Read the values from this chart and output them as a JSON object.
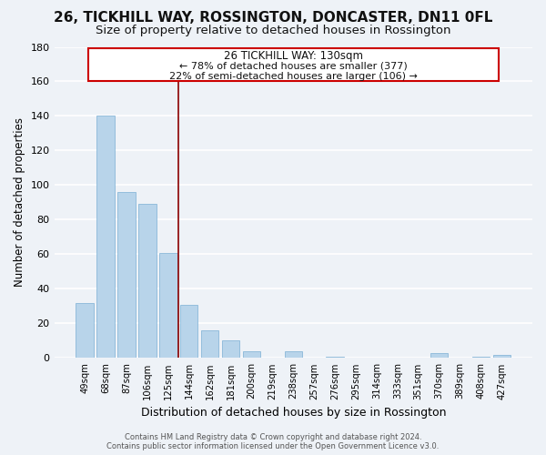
{
  "title": "26, TICKHILL WAY, ROSSINGTON, DONCASTER, DN11 0FL",
  "subtitle": "Size of property relative to detached houses in Rossington",
  "xlabel": "Distribution of detached houses by size in Rossington",
  "ylabel": "Number of detached properties",
  "footer_line1": "Contains HM Land Registry data © Crown copyright and database right 2024.",
  "footer_line2": "Contains public sector information licensed under the Open Government Licence v3.0.",
  "bar_labels": [
    "49sqm",
    "68sqm",
    "87sqm",
    "106sqm",
    "125sqm",
    "144sqm",
    "162sqm",
    "181sqm",
    "200sqm",
    "219sqm",
    "238sqm",
    "257sqm",
    "276sqm",
    "295sqm",
    "314sqm",
    "333sqm",
    "351sqm",
    "370sqm",
    "389sqm",
    "408sqm",
    "427sqm"
  ],
  "bar_values": [
    32,
    140,
    96,
    89,
    61,
    31,
    16,
    10,
    4,
    0,
    4,
    0,
    1,
    0,
    0,
    0,
    0,
    3,
    0,
    1,
    2
  ],
  "bar_color": "#b8d4ea",
  "bar_edge_color": "#7bafd4",
  "vline_color": "#8b0000",
  "annotation_title": "26 TICKHILL WAY: 130sqm",
  "annotation_line1": "← 78% of detached houses are smaller (377)",
  "annotation_line2": "22% of semi-detached houses are larger (106) →",
  "annotation_box_color": "#ffffff",
  "annotation_box_edge": "#cc0000",
  "ylim": [
    0,
    180
  ],
  "yticks": [
    0,
    20,
    40,
    60,
    80,
    100,
    120,
    140,
    160,
    180
  ],
  "bg_color": "#eef2f7",
  "grid_color": "#ffffff",
  "title_fontsize": 11,
  "subtitle_fontsize": 9.5
}
